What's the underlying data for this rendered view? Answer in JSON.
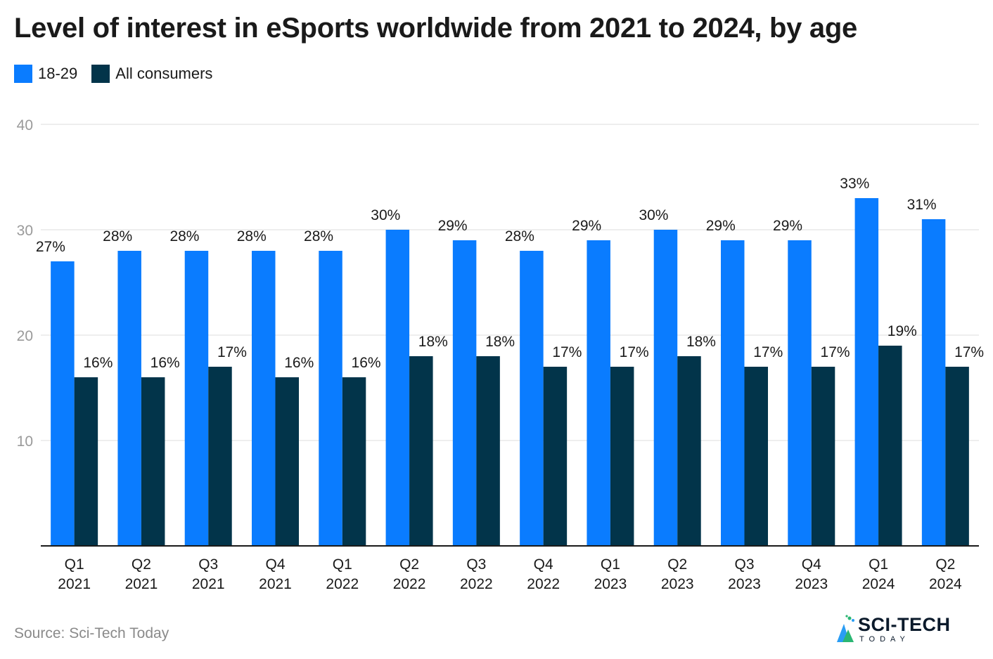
{
  "title": "Level of interest in eSports worldwide from 2021 to 2024, by age",
  "source": "Source: Sci-Tech Today",
  "logo": {
    "main": "SCI-TECH",
    "sub": "TODAY"
  },
  "colors": {
    "series1": "#0a7cff",
    "series2": "#02344a",
    "grid": "#dcdcdc",
    "axis": "#1a1a1a",
    "tick": "#9a9a9a"
  },
  "chart_data": {
    "type": "bar",
    "categories": [
      [
        "Q1",
        "2021"
      ],
      [
        "Q2",
        "2021"
      ],
      [
        "Q3",
        "2021"
      ],
      [
        "Q4",
        "2021"
      ],
      [
        "Q1",
        "2022"
      ],
      [
        "Q2",
        "2022"
      ],
      [
        "Q3",
        "2022"
      ],
      [
        "Q4",
        "2022"
      ],
      [
        "Q1",
        "2023"
      ],
      [
        "Q2",
        "2023"
      ],
      [
        "Q3",
        "2023"
      ],
      [
        "Q4",
        "2023"
      ],
      [
        "Q1",
        "2024"
      ],
      [
        "Q2",
        "2024"
      ]
    ],
    "series": [
      {
        "name": "18-29",
        "color": "#0a7cff",
        "values": [
          27,
          28,
          28,
          28,
          28,
          30,
          29,
          28,
          29,
          30,
          29,
          29,
          33,
          31
        ]
      },
      {
        "name": "All consumers",
        "color": "#02344a",
        "values": [
          16,
          16,
          17,
          16,
          16,
          18,
          18,
          17,
          17,
          18,
          17,
          17,
          19,
          17
        ]
      }
    ],
    "value_suffix": "%",
    "ylim": [
      0,
      40
    ],
    "yticks": [
      10,
      20,
      30,
      40
    ],
    "grid": true,
    "legend": "top-left"
  }
}
